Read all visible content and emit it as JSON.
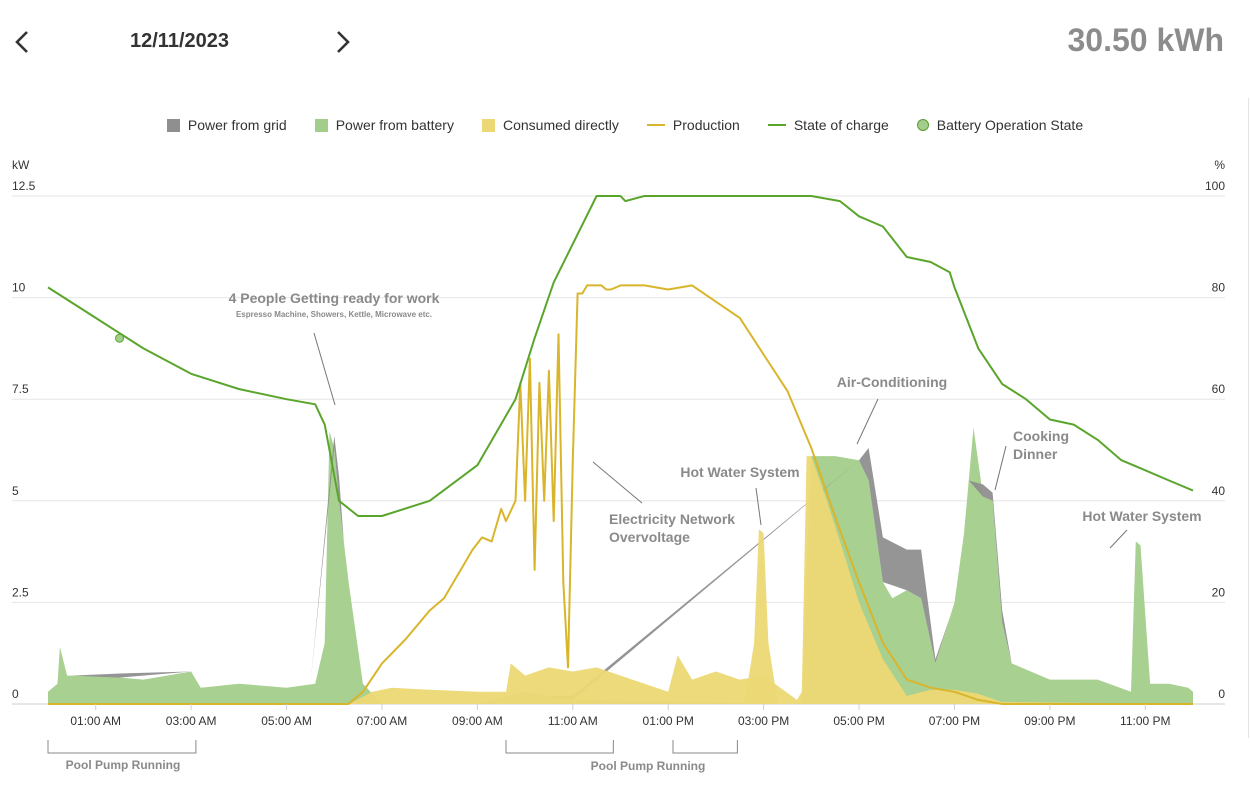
{
  "header": {
    "date": "12/11/2023",
    "total_energy": "30.50 kWh"
  },
  "colors": {
    "grid": "#8f8f8f",
    "battery": "#a3cd8a",
    "consumed": "#ecd874",
    "production": "#d9b52b",
    "soc": "#5aa52c",
    "op_state": "#a3cd8a"
  },
  "legend": [
    {
      "label": "Power from grid",
      "kind": "square",
      "color": "#8f8f8f"
    },
    {
      "label": "Power from battery",
      "kind": "square",
      "color": "#a3cd8a"
    },
    {
      "label": "Consumed directly",
      "kind": "square",
      "color": "#ecd874"
    },
    {
      "label": "Production",
      "kind": "line",
      "color": "#d9b52b"
    },
    {
      "label": "State of charge",
      "kind": "line",
      "color": "#5aa52c"
    },
    {
      "label": "Battery Operation State",
      "kind": "dot",
      "color": "#a3cd8a"
    }
  ],
  "chart_data": {
    "type": "area",
    "title": "",
    "xlabel": "",
    "ylabel_left": "kW",
    "ylabel_right": "%",
    "x_unit": "hours",
    "xlim": [
      0,
      24
    ],
    "ylim_left": [
      0,
      12.5
    ],
    "ylim_right": [
      0,
      100
    ],
    "y_ticks_left": [
      "0",
      "2.5",
      "5",
      "7.5",
      "10",
      "12.5"
    ],
    "y_ticks_right": [
      "0",
      "20",
      "40",
      "60",
      "80",
      "100"
    ],
    "x_ticks": [
      {
        "hour": 1,
        "label": "01:00 AM"
      },
      {
        "hour": 3,
        "label": "03:00 AM"
      },
      {
        "hour": 5,
        "label": "05:00 AM"
      },
      {
        "hour": 7,
        "label": "07:00 AM"
      },
      {
        "hour": 9,
        "label": "09:00 AM"
      },
      {
        "hour": 11,
        "label": "11:00 AM"
      },
      {
        "hour": 13,
        "label": "01:00 PM"
      },
      {
        "hour": 15,
        "label": "03:00 PM"
      },
      {
        "hour": 17,
        "label": "05:00 PM"
      },
      {
        "hour": 19,
        "label": "07:00 PM"
      },
      {
        "hour": 21,
        "label": "09:00 PM"
      },
      {
        "hour": 23,
        "label": "11:00 PM"
      }
    ],
    "series": [
      {
        "name": "Consumed directly",
        "axis": "left",
        "kind": "area",
        "x": [
          0,
          6.3,
          6.8,
          7.2,
          8,
          9,
          9.6,
          9.7,
          10,
          10.5,
          11,
          11.5,
          12,
          12.5,
          13,
          13.2,
          13.5,
          14,
          14.5,
          15,
          15.7,
          15.8,
          15.9,
          16,
          16.3,
          16.6,
          17,
          17.5,
          18,
          18.5,
          19,
          19.5,
          20,
          24
        ],
        "y": [
          0,
          0,
          0.3,
          0.4,
          0.35,
          0.3,
          0.3,
          1.0,
          0.7,
          0.9,
          0.8,
          0.9,
          0.7,
          0.5,
          0.3,
          1.2,
          0.6,
          0.8,
          0.6,
          0.7,
          0.1,
          0.3,
          6.1,
          6.1,
          5.1,
          4.0,
          2.5,
          1.1,
          0.2,
          0.35,
          0.35,
          0.25,
          0.05,
          0
        ]
      },
      {
        "name": "Consumed directly (Hot Water System)",
        "axis": "left",
        "kind": "area",
        "x": [
          14.6,
          14.8,
          14.9,
          15.0,
          15.1,
          15.3
        ],
        "y": [
          0.0,
          1.5,
          4.3,
          4.2,
          1.5,
          0.0
        ]
      },
      {
        "name": "Power from battery",
        "axis": "left",
        "kind": "area",
        "x": [
          0,
          0.2,
          0.25,
          0.4,
          1,
          2,
          3,
          3.2,
          4,
          5,
          5.6,
          5.8,
          5.9,
          6.0,
          6.1,
          6.3,
          6.6,
          7,
          9,
          10,
          11,
          15.8,
          16,
          16.5,
          17,
          17.2,
          17.5,
          17.7,
          18,
          18.3,
          18.6,
          19,
          19.2,
          19.4,
          19.6,
          19.8,
          20,
          20.2,
          21,
          22,
          22.7,
          22.8,
          22.9,
          23.1,
          23.5,
          23.9,
          24
        ],
        "y": [
          0.3,
          0.5,
          1.4,
          0.7,
          0.7,
          0.6,
          0.8,
          0.4,
          0.5,
          0.4,
          0.5,
          1.5,
          6.7,
          6.3,
          5.0,
          3.0,
          0.5,
          0,
          0,
          0.3,
          0.1,
          0,
          6.1,
          6.1,
          6.0,
          5.5,
          3.0,
          2.6,
          2.8,
          2.6,
          1.0,
          2.5,
          4.2,
          6.8,
          5.1,
          5.0,
          2.0,
          1.0,
          0.6,
          0.6,
          0.3,
          4.0,
          3.9,
          0.5,
          0.5,
          0.4,
          0.3
        ]
      },
      {
        "name": "Power from grid",
        "axis": "left",
        "kind": "area",
        "x": [
          0.5,
          1.5,
          3.0,
          5.5,
          6.0,
          6.1,
          6.2,
          10.5,
          11.0,
          17.0,
          17.2,
          17.5,
          18.0,
          18.3,
          18.6,
          18.9,
          19.3,
          19.6,
          19.8,
          20.0,
          20.2,
          21,
          24
        ],
        "y": [
          0,
          0.1,
          0,
          0,
          0.3,
          0.6,
          0,
          0,
          0.1,
          0,
          0.8,
          1.1,
          1.0,
          1.2,
          0.1,
          0,
          0,
          0.3,
          0.2,
          0.3,
          0,
          0,
          0
        ]
      },
      {
        "name": "Production",
        "axis": "left",
        "kind": "line",
        "x": [
          0,
          6.3,
          6.6,
          7,
          7.5,
          8,
          8.3,
          8.6,
          8.9,
          9.1,
          9.3,
          9.5,
          9.6,
          9.8,
          9.9,
          10.0,
          10.1,
          10.2,
          10.3,
          10.4,
          10.5,
          10.6,
          10.7,
          10.8,
          10.9,
          11.0,
          11.1,
          11.2,
          11.3,
          11.5,
          11.6,
          11.7,
          11.8,
          12.0,
          12.5,
          13,
          13.5,
          14,
          14.5,
          15,
          15.5,
          16,
          16.5,
          17,
          17.5,
          18,
          18.5,
          19,
          19.5,
          20,
          24
        ],
        "y": [
          0,
          0,
          0.3,
          1.0,
          1.6,
          2.3,
          2.6,
          3.2,
          3.8,
          4.1,
          4.0,
          4.8,
          4.5,
          5.0,
          7.9,
          5.0,
          8.5,
          3.3,
          7.9,
          5.0,
          8.2,
          4.5,
          9.1,
          3.0,
          0.9,
          6.0,
          10.1,
          10.1,
          10.3,
          10.3,
          10.3,
          10.2,
          10.2,
          10.3,
          10.3,
          10.2,
          10.3,
          9.9,
          9.5,
          8.6,
          7.7,
          6.3,
          4.6,
          3.0,
          1.5,
          0.6,
          0.4,
          0.3,
          0.1,
          0,
          0
        ]
      },
      {
        "name": "State of charge",
        "axis": "right",
        "kind": "line",
        "x": [
          0,
          1,
          2,
          3,
          4,
          5,
          5.6,
          5.8,
          6.1,
          6.5,
          7,
          8,
          9,
          9.8,
          10.2,
          10.6,
          11.5,
          11.9,
          12,
          12.1,
          12.5,
          16,
          16.6,
          17,
          17.5,
          18,
          18.5,
          18.9,
          19,
          19.5,
          20,
          20.5,
          21,
          21.5,
          22,
          22.5,
          23,
          23.5,
          24
        ],
        "y": [
          82,
          76,
          70,
          65,
          62,
          60,
          59,
          55,
          40,
          37,
          37,
          40,
          47,
          60,
          72,
          83,
          100,
          100,
          100,
          99,
          100,
          100,
          99,
          96,
          94,
          88,
          87,
          85,
          82,
          70,
          63,
          60,
          56,
          55,
          52,
          48,
          46,
          44,
          42
        ]
      }
    ],
    "battery_operation_state": [
      {
        "hour": 1.5,
        "soc": 72
      }
    ],
    "annotations": [
      {
        "title": "4 People Getting ready for work",
        "subtitle": "Espresso Machine, Showers, Kettle, Microwave etc."
      },
      {
        "title": "Electricity Network",
        "title2": "Overvoltage"
      },
      {
        "title": "Hot Water System"
      },
      {
        "title": "Air-Conditioning"
      },
      {
        "title": "Cooking",
        "title2": "Dinner"
      },
      {
        "title": "Hot Water System"
      }
    ],
    "pool_pump_periods": [
      {
        "start": 0,
        "end": 3.1,
        "label": "Pool Pump Running"
      },
      {
        "start": 9.6,
        "end": 11.85,
        "label": ""
      },
      {
        "start": 13.1,
        "end": 14.45,
        "label": "Pool Pump Running"
      }
    ]
  }
}
